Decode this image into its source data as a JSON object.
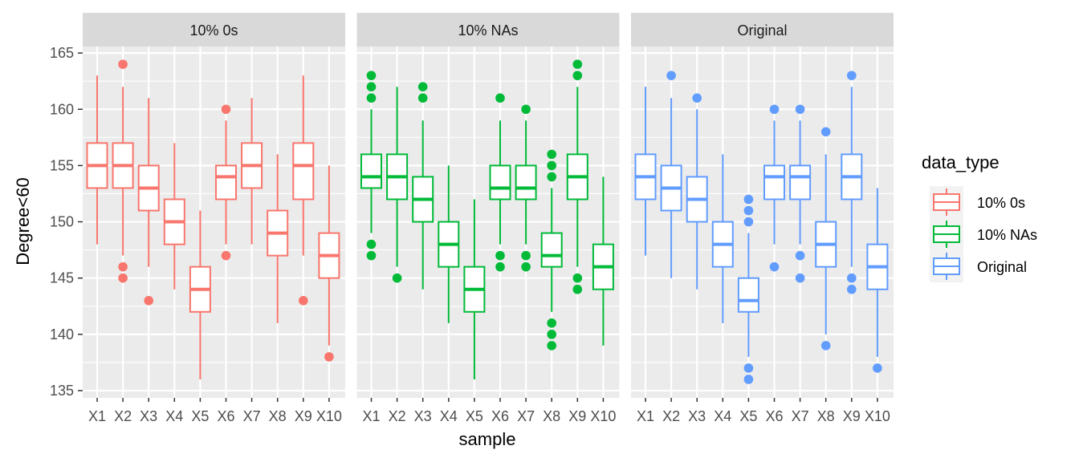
{
  "chart_data": {
    "type": "boxplot",
    "title": "",
    "xlabel": "sample",
    "ylabel": "Degree<60",
    "ylim": [
      134.5,
      165.5
    ],
    "yticks": [
      135,
      140,
      145,
      150,
      155,
      160,
      165
    ],
    "categories": [
      "X1",
      "X2",
      "X3",
      "X4",
      "X5",
      "X6",
      "X7",
      "X8",
      "X9",
      "X10"
    ],
    "legend": {
      "title": "data_type",
      "placement": "right",
      "entries": [
        "10% 0s",
        "10% NAs",
        "Original"
      ]
    },
    "colors": {
      "10% 0s": "#F8766D",
      "10% NAs": "#00BA38",
      "Original": "#619CFF"
    },
    "panels": [
      {
        "label": "10% 0s",
        "series": "10% 0s",
        "boxes": [
          {
            "low": 148,
            "q1": 153,
            "median": 155,
            "q3": 157,
            "high": 163,
            "outliers": []
          },
          {
            "low": 147,
            "q1": 153,
            "median": 155,
            "q3": 157,
            "high": 162,
            "outliers": [
              164,
              146,
              145
            ]
          },
          {
            "low": 146,
            "q1": 151,
            "median": 153,
            "q3": 155,
            "high": 161,
            "outliers": [
              143
            ]
          },
          {
            "low": 144,
            "q1": 148,
            "median": 150,
            "q3": 152,
            "high": 157,
            "outliers": []
          },
          {
            "low": 136,
            "q1": 142,
            "median": 144,
            "q3": 146,
            "high": 151,
            "outliers": []
          },
          {
            "low": 148,
            "q1": 152,
            "median": 154,
            "q3": 155,
            "high": 159,
            "outliers": [
              160,
              147
            ]
          },
          {
            "low": 148,
            "q1": 153,
            "median": 155,
            "q3": 157,
            "high": 161,
            "outliers": []
          },
          {
            "low": 141,
            "q1": 147,
            "median": 149,
            "q3": 151,
            "high": 156,
            "outliers": []
          },
          {
            "low": 147,
            "q1": 152,
            "median": 155,
            "q3": 157,
            "high": 163,
            "outliers": [
              143
            ]
          },
          {
            "low": 139,
            "q1": 145,
            "median": 147,
            "q3": 149,
            "high": 155,
            "outliers": [
              138
            ]
          }
        ]
      },
      {
        "label": "10% NAs",
        "series": "10% NAs",
        "boxes": [
          {
            "low": 149,
            "q1": 153,
            "median": 154,
            "q3": 156,
            "high": 160,
            "outliers": [
              163,
              162,
              161,
              148,
              147
            ]
          },
          {
            "low": 146,
            "q1": 152,
            "median": 154,
            "q3": 156,
            "high": 162,
            "outliers": [
              145
            ]
          },
          {
            "low": 144,
            "q1": 150,
            "median": 152,
            "q3": 154,
            "high": 159,
            "outliers": [
              162,
              161
            ]
          },
          {
            "low": 141,
            "q1": 146,
            "median": 148,
            "q3": 150,
            "high": 155,
            "outliers": []
          },
          {
            "low": 136,
            "q1": 142,
            "median": 144,
            "q3": 146,
            "high": 152,
            "outliers": []
          },
          {
            "low": 148,
            "q1": 152,
            "median": 153,
            "q3": 155,
            "high": 159,
            "outliers": [
              161,
              147,
              146
            ]
          },
          {
            "low": 148,
            "q1": 152,
            "median": 153,
            "q3": 155,
            "high": 159,
            "outliers": [
              160,
              147,
              146
            ]
          },
          {
            "low": 142,
            "q1": 146,
            "median": 147,
            "q3": 149,
            "high": 153,
            "outliers": [
              156,
              155,
              154,
              141,
              140,
              139
            ]
          },
          {
            "low": 146,
            "q1": 152,
            "median": 154,
            "q3": 156,
            "high": 162,
            "outliers": [
              164,
              163,
              145,
              144
            ]
          },
          {
            "low": 139,
            "q1": 144,
            "median": 146,
            "q3": 148,
            "high": 154,
            "outliers": []
          }
        ]
      },
      {
        "label": "Original",
        "series": "Original",
        "boxes": [
          {
            "low": 147,
            "q1": 152,
            "median": 154,
            "q3": 156,
            "high": 162,
            "outliers": []
          },
          {
            "low": 145,
            "q1": 151,
            "median": 153,
            "q3": 155,
            "high": 161,
            "outliers": [
              163
            ]
          },
          {
            "low": 144,
            "q1": 150,
            "median": 152,
            "q3": 154,
            "high": 160,
            "outliers": [
              161
            ]
          },
          {
            "low": 141,
            "q1": 146,
            "median": 148,
            "q3": 150,
            "high": 156,
            "outliers": []
          },
          {
            "low": 138,
            "q1": 142,
            "median": 143,
            "q3": 145,
            "high": 149,
            "outliers": [
              152,
              151,
              150,
              137,
              136
            ]
          },
          {
            "low": 148,
            "q1": 152,
            "median": 154,
            "q3": 155,
            "high": 159,
            "outliers": [
              160,
              146
            ]
          },
          {
            "low": 148,
            "q1": 152,
            "median": 154,
            "q3": 155,
            "high": 159,
            "outliers": [
              160,
              147,
              145
            ]
          },
          {
            "low": 140,
            "q1": 146,
            "median": 148,
            "q3": 150,
            "high": 156,
            "outliers": [
              158,
              139
            ]
          },
          {
            "low": 146,
            "q1": 152,
            "median": 154,
            "q3": 156,
            "high": 162,
            "outliers": [
              163,
              145,
              144
            ]
          },
          {
            "low": 138,
            "q1": 144,
            "median": 146,
            "q3": 148,
            "high": 153,
            "outliers": [
              137
            ]
          }
        ]
      }
    ]
  }
}
